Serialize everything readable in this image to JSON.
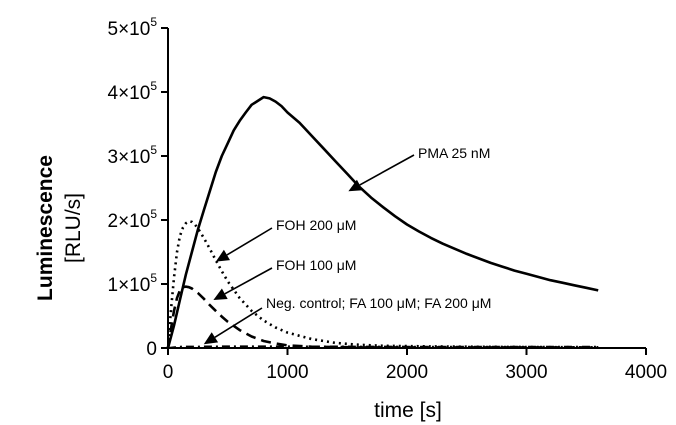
{
  "chart_data": {
    "type": "line",
    "xlabel": "time [s]",
    "ylabel_line1": "Luminescence",
    "ylabel_line2": "[RLU/s]",
    "xlim": [
      0,
      4000
    ],
    "ylim": [
      0,
      500000
    ],
    "x_ticks": [
      {
        "value": 0,
        "label": "0"
      },
      {
        "value": 1000,
        "label": "1000"
      },
      {
        "value": 2000,
        "label": "2000"
      },
      {
        "value": 3000,
        "label": "3000"
      },
      {
        "value": 4000,
        "label": "4000"
      }
    ],
    "y_ticks": [
      {
        "value": 0,
        "base": "0",
        "exp": ""
      },
      {
        "value": 100000,
        "base": "1×10",
        "exp": "5"
      },
      {
        "value": 200000,
        "base": "2×10",
        "exp": "5"
      },
      {
        "value": 300000,
        "base": "3×10",
        "exp": "5"
      },
      {
        "value": 400000,
        "base": "4×10",
        "exp": "5"
      },
      {
        "value": 500000,
        "base": "5×10",
        "exp": "5"
      }
    ],
    "grid": false,
    "series": [
      {
        "label": "PMA 25 nM",
        "style": "solid",
        "color": "#000000",
        "x": [
          0,
          50,
          100,
          150,
          200,
          250,
          300,
          350,
          400,
          450,
          500,
          550,
          600,
          650,
          700,
          750,
          800,
          850,
          900,
          950,
          1000,
          1100,
          1200,
          1300,
          1400,
          1500,
          1600,
          1700,
          1800,
          1900,
          2000,
          2100,
          2200,
          2300,
          2400,
          2500,
          2600,
          2700,
          2800,
          2900,
          3000,
          3100,
          3200,
          3300,
          3400,
          3500,
          3600
        ],
        "y": [
          0,
          35000,
          75000,
          115000,
          150000,
          185000,
          215000,
          245000,
          275000,
          300000,
          320000,
          340000,
          355000,
          368000,
          380000,
          386000,
          392000,
          390000,
          385000,
          378000,
          368000,
          352000,
          332000,
          312000,
          292000,
          272000,
          252000,
          235000,
          220000,
          206000,
          193000,
          182000,
          172000,
          163000,
          155000,
          147000,
          140000,
          133000,
          127000,
          121000,
          116000,
          111000,
          106000,
          102000,
          98000,
          94000,
          90000
        ]
      },
      {
        "label": "FOH 200 μM",
        "style": "dotted",
        "color": "#000000",
        "x": [
          0,
          25,
          50,
          75,
          100,
          125,
          150,
          175,
          200,
          225,
          250,
          300,
          350,
          400,
          450,
          500,
          600,
          700,
          800,
          900,
          1000,
          1200,
          1400,
          1600,
          1800,
          2000,
          2200,
          2500,
          3000,
          3600
        ],
        "y": [
          0,
          60000,
          110000,
          150000,
          175000,
          188000,
          195000,
          198000,
          197000,
          193000,
          187000,
          172000,
          155000,
          137000,
          120000,
          104000,
          78000,
          58000,
          43000,
          32000,
          24000,
          14000,
          8000,
          5000,
          3500,
          3000,
          2500,
          2000,
          1500,
          1000
        ]
      },
      {
        "label": "FOH 100 μM",
        "style": "dashed",
        "color": "#000000",
        "x": [
          0,
          25,
          50,
          75,
          100,
          125,
          150,
          175,
          200,
          250,
          300,
          350,
          400,
          450,
          500,
          600,
          700,
          800,
          900,
          1000,
          1200,
          1400,
          1600,
          1800,
          2000,
          2500,
          3000,
          3600
        ],
        "y": [
          0,
          30000,
          58000,
          78000,
          90000,
          95000,
          96000,
          95000,
          93000,
          86000,
          77000,
          67000,
          58000,
          49000,
          41000,
          28000,
          18000,
          11000,
          7000,
          4000,
          2000,
          1500,
          1000,
          1000,
          1000,
          1000,
          1000,
          1000
        ]
      },
      {
        "label": "Neg. control; FA 100 μM; FA 200 μM",
        "style": "dashdot",
        "color": "#000000",
        "x": [
          0,
          100,
          500,
          1000,
          2000,
          3000,
          3600
        ],
        "y": [
          0,
          2000,
          2500,
          2500,
          2000,
          2000,
          2000
        ]
      }
    ],
    "annotations": [
      {
        "text": "PMA 25 nM",
        "series": 0
      },
      {
        "text": "FOH 200 μM",
        "series": 1
      },
      {
        "text": "FOH 100 μM",
        "series": 2
      },
      {
        "text": "Neg. control; FA 100 μM; FA 200 μM",
        "series": 3
      }
    ]
  }
}
